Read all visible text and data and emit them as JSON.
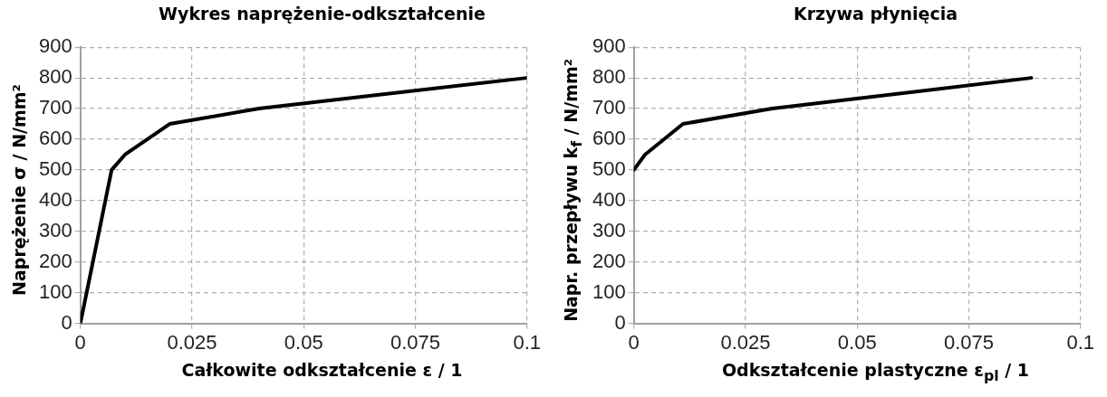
{
  "chart_data": [
    {
      "type": "line",
      "title": "Wykres naprężenie-odkształcenie",
      "xlabel": "Całkowite odkształcenie   ε / 1",
      "ylabel": "Naprężenie  σ / N/mm²",
      "x": [
        0,
        0.007,
        0.01,
        0.02,
        0.04,
        0.1
      ],
      "series": [
        {
          "color": "#000000",
          "values": [
            0,
            500,
            550,
            650,
            700,
            800
          ]
        }
      ],
      "xlim": [
        0,
        0.1
      ],
      "xticks": [
        0,
        0.025,
        0.05,
        0.075,
        0.1
      ],
      "ylim": [
        0,
        900
      ],
      "yticks": [
        0,
        100,
        200,
        300,
        400,
        500,
        600,
        700,
        800,
        900
      ],
      "grid": true,
      "marker": "none",
      "line_style": "solid"
    },
    {
      "type": "line",
      "title": "Krzywa płynięcia",
      "xlabel": "Odkształcenie plastyczne   ε$_{pl}$ / 1",
      "ylabel": "Napr. przepływu  k$_{f}$ / N/mm²",
      "x": [
        0,
        0.0025,
        0.011,
        0.031,
        0.089
      ],
      "series": [
        {
          "color": "#000000",
          "values": [
            500,
            550,
            650,
            700,
            800
          ]
        }
      ],
      "xlim": [
        0,
        0.1
      ],
      "xticks": [
        0,
        0.025,
        0.05,
        0.075,
        0.1
      ],
      "ylim": [
        0,
        900
      ],
      "yticks": [
        0,
        100,
        200,
        300,
        400,
        500,
        600,
        700,
        800,
        900
      ],
      "grid": true,
      "marker": "none",
      "line_style": "solid"
    }
  ]
}
